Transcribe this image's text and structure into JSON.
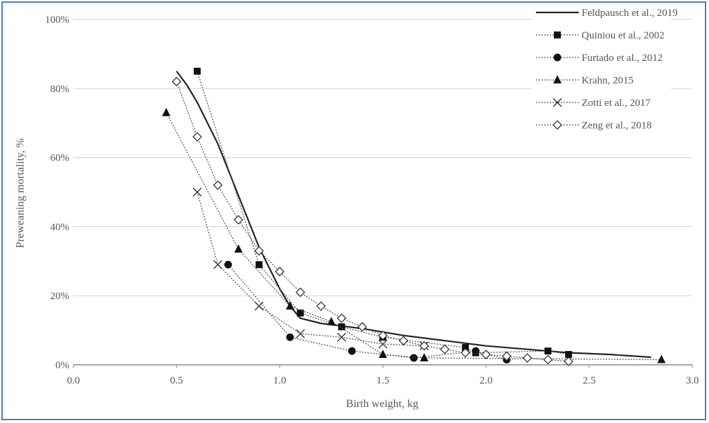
{
  "chart_data": {
    "type": "line",
    "title": "",
    "xlabel": "Birth weight, kg",
    "ylabel": "Preweaning mortality, %",
    "xlim": [
      0,
      3.0
    ],
    "ylim": [
      0,
      100
    ],
    "x_ticks": [
      "0.0",
      "0.5",
      "1.0",
      "1.5",
      "2.0",
      "2.5",
      "3.0"
    ],
    "y_ticks": [
      "0%",
      "20%",
      "40%",
      "60%",
      "80%",
      "100%"
    ],
    "grid": "horizontal",
    "legend_position": "top-right",
    "series": [
      {
        "name": "Feldpausch et al., 2019",
        "marker": "none",
        "style": "solid",
        "points": [
          [
            0.5,
            85
          ],
          [
            0.55,
            81
          ],
          [
            0.6,
            76
          ],
          [
            0.7,
            64
          ],
          [
            0.8,
            49
          ],
          [
            0.9,
            34
          ],
          [
            1.0,
            22
          ],
          [
            1.05,
            17
          ],
          [
            1.1,
            13.5
          ],
          [
            1.2,
            12
          ],
          [
            1.4,
            10.5
          ],
          [
            1.6,
            8.5
          ],
          [
            1.8,
            7
          ],
          [
            2.0,
            5.5
          ],
          [
            2.2,
            4.5
          ],
          [
            2.4,
            3.5
          ],
          [
            2.6,
            3
          ],
          [
            2.8,
            2.2
          ]
        ]
      },
      {
        "name": "Quiniou et al., 2002",
        "marker": "square",
        "style": "dotted",
        "points": [
          [
            0.6,
            85
          ],
          [
            0.9,
            29
          ],
          [
            1.1,
            15
          ],
          [
            1.3,
            11
          ],
          [
            1.5,
            8
          ],
          [
            1.9,
            5
          ],
          [
            1.95,
            3.5
          ],
          [
            2.3,
            4
          ],
          [
            2.4,
            3
          ]
        ]
      },
      {
        "name": "Furtado et al., 2012",
        "marker": "circle",
        "style": "dotted",
        "points": [
          [
            0.75,
            29
          ],
          [
            1.05,
            8
          ],
          [
            1.35,
            4
          ],
          [
            1.65,
            2
          ],
          [
            1.95,
            4
          ],
          [
            2.1,
            1.5
          ]
        ]
      },
      {
        "name": "Krahn, 2015",
        "marker": "triangle",
        "style": "dotted",
        "points": [
          [
            0.45,
            73
          ],
          [
            0.8,
            33.5
          ],
          [
            1.05,
            17
          ],
          [
            1.25,
            12.5
          ],
          [
            1.5,
            3
          ],
          [
            1.7,
            2
          ],
          [
            2.85,
            1.5
          ]
        ]
      },
      {
        "name": "Zotti et al., 2017",
        "marker": "x",
        "style": "dotted",
        "points": [
          [
            0.6,
            50
          ],
          [
            0.7,
            29
          ],
          [
            0.9,
            17
          ],
          [
            1.1,
            9
          ],
          [
            1.3,
            8
          ],
          [
            1.5,
            6
          ],
          [
            1.7,
            5.5
          ]
        ]
      },
      {
        "name": "Zeng et al., 2018",
        "marker": "diamond",
        "style": "dotted",
        "points": [
          [
            0.5,
            82
          ],
          [
            0.6,
            66
          ],
          [
            0.7,
            52
          ],
          [
            0.8,
            42
          ],
          [
            0.9,
            33
          ],
          [
            1.0,
            27
          ],
          [
            1.1,
            21
          ],
          [
            1.2,
            17
          ],
          [
            1.3,
            13.5
          ],
          [
            1.4,
            11
          ],
          [
            1.5,
            8.5
          ],
          [
            1.6,
            7
          ],
          [
            1.7,
            5.5
          ],
          [
            1.8,
            4.5
          ],
          [
            1.9,
            3.5
          ],
          [
            2.0,
            3
          ],
          [
            2.1,
            2.5
          ],
          [
            2.2,
            2
          ],
          [
            2.3,
            1.5
          ],
          [
            2.4,
            1
          ]
        ]
      }
    ]
  }
}
